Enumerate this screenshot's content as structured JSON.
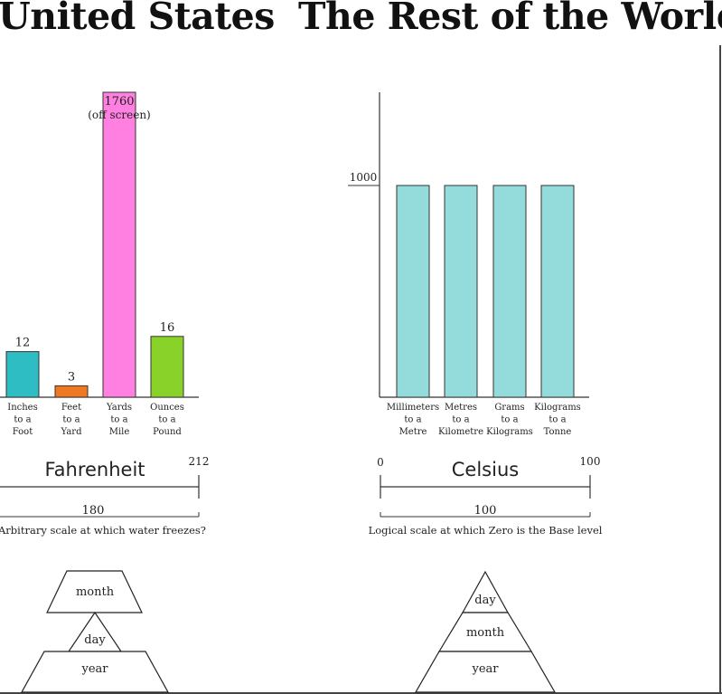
{
  "headings": {
    "left": "United States",
    "right": "The Rest of the World"
  },
  "chart_data": [
    {
      "type": "bar",
      "categories": [
        [
          "Inches",
          "to a",
          "Foot"
        ],
        [
          "Feet",
          "to a",
          "Yard"
        ],
        [
          "Yards",
          "to a",
          "Mile"
        ],
        [
          "Ounces",
          "to a",
          "Pound"
        ]
      ],
      "values": [
        12,
        3,
        1760,
        16
      ],
      "value_labels": [
        "12",
        "3",
        "1760",
        "16"
      ],
      "annotations": [
        "(off screen)"
      ],
      "colors": [
        "#2fbdc4",
        "#f07820",
        "#ff80e0",
        "#88d22a"
      ]
    },
    {
      "type": "bar",
      "categories": [
        [
          "Millimeters",
          "to a",
          "Metre"
        ],
        [
          "Metres",
          "to a",
          "Kilometre"
        ],
        [
          "Grams",
          "to a",
          "Kilograms"
        ],
        [
          "Kilograms",
          "to a",
          "Tonne"
        ]
      ],
      "values": [
        1000,
        1000,
        1000,
        1000
      ],
      "y_tick_label": "1000",
      "colors": [
        "#94dcdc",
        "#94dcdc",
        "#94dcdc",
        "#94dcdc"
      ]
    }
  ],
  "temperature": {
    "left": {
      "name": "Fahrenheit",
      "end_label": "212",
      "span_label": "180",
      "caption": "Arbitrary scale at which water freezes?"
    },
    "right": {
      "name": "Celsius",
      "start_label": "0",
      "end_label": "100",
      "span_label": "100",
      "caption": "Logical scale at which Zero is the Base level"
    }
  },
  "date_order": {
    "left": {
      "top": "month",
      "middle": "day",
      "bottom": "year"
    },
    "right": {
      "top": "day",
      "middle": "month",
      "bottom": "year"
    }
  }
}
